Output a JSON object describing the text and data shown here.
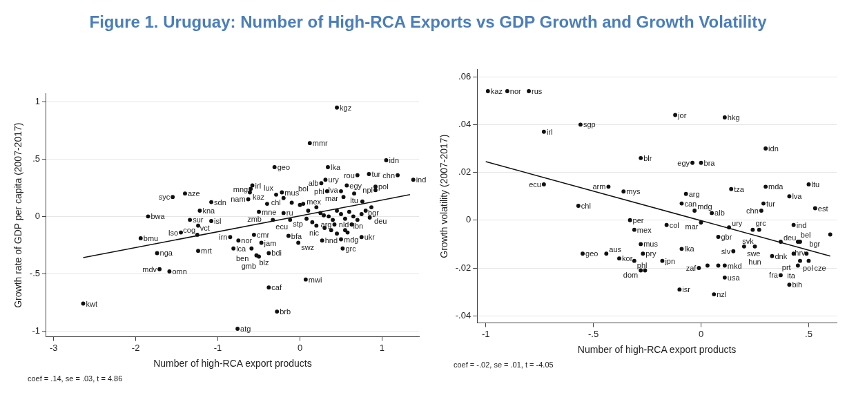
{
  "chart_data": [
    {
      "type": "scatter",
      "title": "Figure 1. Uruguay: Number of High-RCA Exports vs GDP Growth and Growth Volatility",
      "xlabel": "Number of high-RCA export products",
      "ylabel": "Growth rate of GDP per capita (2007-2017)",
      "xlim": [
        -3.09,
        1.45
      ],
      "ylim": [
        -1.05,
        1.07
      ],
      "xticks": [
        -3,
        -2,
        -1,
        {
          "value": 0,
          "label": "0"
        },
        1
      ],
      "yticks": [
        {
          "value": -1,
          "label": "-1"
        },
        {
          "value": -0.5,
          "label": "-.5"
        },
        {
          "value": 0,
          "label": "0"
        },
        {
          "value": 0.5,
          "label": ".5"
        },
        1
      ],
      "grid": "y",
      "legend": false,
      "marker": "circle",
      "annotations": [
        "coef = .14, se = .03, t = 4.86"
      ],
      "series": [
        {
          "color": "#111111",
          "x": [
            -2.64,
            -1.55,
            -1.4,
            -1.08,
            -1.22,
            -1.85,
            -1.34,
            -1.08,
            -1.24,
            -1.45,
            -1.25,
            -1.94,
            -1.74,
            -1.24,
            -1.71,
            -1.59,
            -0.85,
            -0.81,
            -0.75,
            -0.56,
            -0.47,
            -0.59,
            -0.38,
            -0.53,
            -0.5,
            -0.14,
            -0.02,
            0.27,
            0.52,
            0.5,
            0.75,
            0.07,
            -0.38,
            -0.28,
            -0.76,
            0.45,
            0.12,
            -0.31,
            0.34,
            1.05,
            0.7,
            0.84,
            1.19,
            1.38,
            0.31,
            0.26,
            -0.58,
            -0.6,
            -0.61,
            -0.22,
            -0.29,
            -0.2,
            -0.63,
            0.33,
            0.5,
            0.57,
            0.92,
            0.92,
            0.66,
            0.53,
            0.76,
            0.87,
            -0.5,
            -0.33,
            -0.12,
            0.08,
            0.29,
            0.63,
            -0.2,
            -0.4,
            0.04,
            0.42,
            0.58
          ],
          "values": [
            -0.76,
            0.17,
            0.2,
            0.125,
            0.05,
            0,
            -0.03,
            -0.04,
            -0.08,
            -0.14,
            -0.16,
            -0.19,
            -0.32,
            -0.3,
            -0.46,
            -0.48,
            -0.18,
            -0.28,
            -0.21,
            -0.16,
            -0.23,
            -0.28,
            -0.32,
            -0.34,
            -0.35,
            -0.17,
            -0.23,
            -0.21,
            -0.28,
            -0.2,
            -0.18,
            -0.55,
            -0.62,
            -0.83,
            -0.98,
            0.95,
            0.64,
            0.43,
            0.43,
            0.49,
            0.36,
            0.37,
            0.36,
            0.32,
            0.32,
            0.29,
            0.27,
            0.24,
            0.21,
            0.21,
            0.19,
            0.16,
            0.15,
            0.22,
            0.22,
            0.27,
            0.26,
            0.23,
            0.2,
            0.17,
            0.13,
            0.08,
            0.04,
            -0.03,
            -0.03,
            -0.02,
            0.01,
            -0.07,
            0.03,
            0.11,
            0.11,
            -0.07,
            -0.14
          ],
          "value_labels": [
            "kwt",
            "syc",
            "aze",
            "sdn",
            "kna",
            "bwa",
            "sur",
            "isl",
            "cog",
            "lso",
            "vct",
            "bmu",
            "nga",
            "mrt",
            "mdv",
            "omn",
            "irn",
            "lca",
            "nor",
            "cmr",
            "jam",
            "ben",
            "bdi",
            "blz",
            "gmb",
            "bfa",
            "swz",
            "hnd",
            "grc",
            "mdg",
            "ukr",
            "mwi",
            "caf",
            "brb",
            "atg",
            "kgz",
            "mmr",
            "geo",
            "lka",
            "idn",
            "rou",
            "tur",
            "chn",
            "ind",
            "ury",
            "alb",
            "irl",
            "mng",
            "kaz",
            "mus",
            "lux",
            "chl",
            "nam",
            "phl",
            "mar",
            "egy",
            "pol",
            "npl",
            "ltu",
            "lva",
            "bgr",
            "deu",
            "mne",
            "ecu",
            "stp",
            "nic",
            "mex",
            "nld",
            "ru",
            "zmb",
            "bol",
            "arg",
            "lbn"
          ]
        },
        {
          "color": "#111111",
          "x": [
            0.1,
            0.2,
            0.25,
            0.35,
            0.4,
            0.45,
            0.5,
            0.55,
            0.6,
            0.65,
            0.7,
            0.75,
            0.8,
            0.85,
            0.3,
            0.38,
            0.45,
            0.2,
            0.0,
            -0.1,
            0.15,
            0.55
          ],
          "values": [
            0.05,
            0.08,
            0.03,
            0.0,
            -0.03,
            0.05,
            0.02,
            -0.02,
            0.04,
            0.0,
            -0.03,
            0.02,
            0.05,
            -0.01,
            -0.1,
            -0.12,
            -0.15,
            -0.08,
            0.1,
            0.12,
            -0.05,
            -0.12
          ]
        },
        {
          "type": "line",
          "color": "#111111",
          "marker": "none",
          "x": [
            -2.64,
            1.34
          ],
          "values": [
            -0.36,
            0.19
          ]
        }
      ]
    },
    {
      "type": "scatter",
      "xlabel": "Number of high-RCA export products",
      "ylabel": "Growth volatility (2007-2017)",
      "xlim": [
        -1.04,
        0.63
      ],
      "ylim": [
        -0.043,
        0.063
      ],
      "xticks": [
        -1,
        {
          "value": -0.5,
          "label": "-.5"
        },
        {
          "value": 0,
          "label": "0"
        },
        {
          "value": 0.5,
          "label": ".5"
        }
      ],
      "yticks": [
        {
          "value": -0.04,
          "label": "-.04"
        },
        {
          "value": -0.02,
          "label": "-.02"
        },
        {
          "value": 0,
          "label": "0"
        },
        {
          "value": 0.02,
          "label": ".02"
        },
        {
          "value": 0.04,
          "label": ".04"
        },
        {
          "value": 0.06,
          "label": ".06"
        }
      ],
      "grid": "y",
      "legend": false,
      "marker": "circle",
      "annotations": [
        "coef = -.02, se = .01, t = -4.05"
      ],
      "series": [
        {
          "color": "#111111",
          "x": [
            -0.99,
            -0.9,
            -0.8,
            -0.56,
            -0.73,
            -0.28,
            -0.73,
            -0.43,
            -0.36,
            -0.57,
            -0.33,
            -0.31,
            -0.28,
            -0.55,
            -0.44,
            -0.27,
            -0.38,
            -0.31,
            -0.28,
            -0.12,
            0.11,
            0.3,
            -0.04,
            0.0,
            -0.07,
            0.14,
            0.3,
            0.5,
            0.41,
            -0.09,
            0.29,
            0.53,
            -0.03,
            0.05,
            0.28,
            -0.16,
            0.0,
            0.13,
            0.24,
            0.27,
            0.43,
            0.08,
            0.37,
            0.45,
            0.46,
            0.2,
            0.25,
            -0.09,
            0.15,
            0.33,
            0.43,
            0.49,
            -0.18,
            0.46,
            0.5,
            0.45,
            -0.01,
            0.11,
            0.37,
            0.11,
            0.41,
            -0.1,
            0.06
          ],
          "values": [
            0.054,
            0.054,
            0.054,
            0.04,
            0.037,
            0.026,
            0.015,
            0.014,
            0.012,
            0.006,
            0.0,
            -0.004,
            -0.01,
            -0.014,
            -0.014,
            -0.014,
            -0.016,
            -0.017,
            -0.021,
            0.044,
            0.043,
            0.03,
            0.024,
            0.024,
            0.011,
            0.013,
            0.014,
            0.015,
            0.01,
            0.007,
            0.007,
            0.005,
            0.004,
            0.003,
            0.004,
            -0.002,
            -0.001,
            -0.003,
            -0.004,
            -0.004,
            -0.002,
            -0.007,
            -0.009,
            -0.009,
            -0.009,
            -0.011,
            -0.011,
            -0.012,
            -0.013,
            -0.015,
            -0.014,
            -0.014,
            -0.017,
            -0.017,
            -0.017,
            -0.019,
            -0.02,
            -0.019,
            -0.023,
            -0.024,
            -0.027,
            -0.029,
            -0.031
          ],
          "value_labels": [
            "kaz",
            "nor",
            "rus",
            "sgp",
            "irl",
            "blr",
            "ecu",
            "arm",
            "mys",
            "chl",
            "per",
            "mex",
            "mus",
            "geo",
            "aus",
            "pry",
            "kor",
            "phl",
            "dom",
            "jor",
            "hkg",
            "idn",
            "egy",
            "bra",
            "arg",
            "tza",
            "mda",
            "ltu",
            "lva",
            "can",
            "tur",
            "est",
            "mdg",
            "alb",
            "chn",
            "col",
            "mar",
            "ury",
            "grc",
            "svk",
            "ind",
            "gbr",
            "deu",
            "bel",
            "hrv",
            "swe",
            "hun",
            "lka",
            "slv",
            "dnk",
            "prt",
            "bgr",
            "jpn",
            "pol",
            "cze",
            "ita",
            "zaf",
            "mkd",
            "fra",
            "usa",
            "bih",
            "isr",
            "nzl"
          ]
        },
        {
          "color": "#111111",
          "x": [
            -0.26,
            0.03,
            0.08,
            0.6
          ],
          "values": [
            -0.021,
            -0.019,
            -0.019,
            -0.006
          ]
        },
        {
          "type": "line",
          "color": "#111111",
          "marker": "none",
          "x": [
            -1,
            0.6
          ],
          "values": [
            0.0245,
            -0.015
          ]
        }
      ]
    }
  ]
}
